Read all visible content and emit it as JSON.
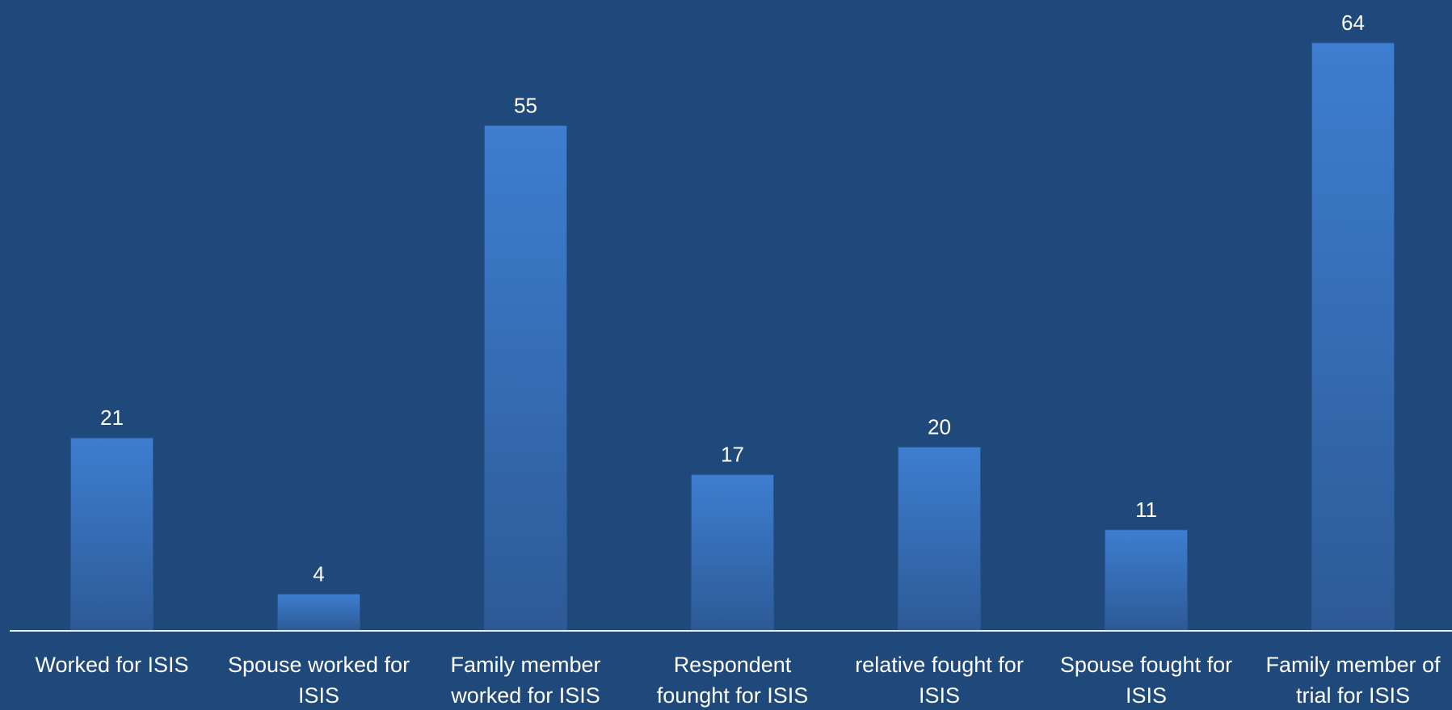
{
  "chart_data": {
    "type": "bar",
    "categories": [
      [
        "Worked for ISIS"
      ],
      [
        "Spouse worked for",
        "ISIS"
      ],
      [
        "Family member",
        "worked for ISIS"
      ],
      [
        "Respondent",
        "founght for ISIS"
      ],
      [
        "relative fought for",
        "ISIS"
      ],
      [
        "Spouse fought for",
        "ISIS"
      ],
      [
        "Family member of",
        "trial for ISIS"
      ]
    ],
    "values": [
      21,
      4,
      55,
      17,
      20,
      11,
      64
    ],
    "data_labels": [
      "21",
      "4",
      "55",
      "17",
      "20",
      "11",
      "64"
    ],
    "ylim": [
      0,
      64
    ],
    "title": "",
    "xlabel": "",
    "ylabel": "",
    "grid": false,
    "legend": "none"
  },
  "colors": {
    "background": "#1f487b",
    "bar_top": "#3d7ed0",
    "bar_bottom": "#2d5a96",
    "bar_edge": "#2a5694",
    "axis": "#e6edf7",
    "text": "#ffffff"
  }
}
